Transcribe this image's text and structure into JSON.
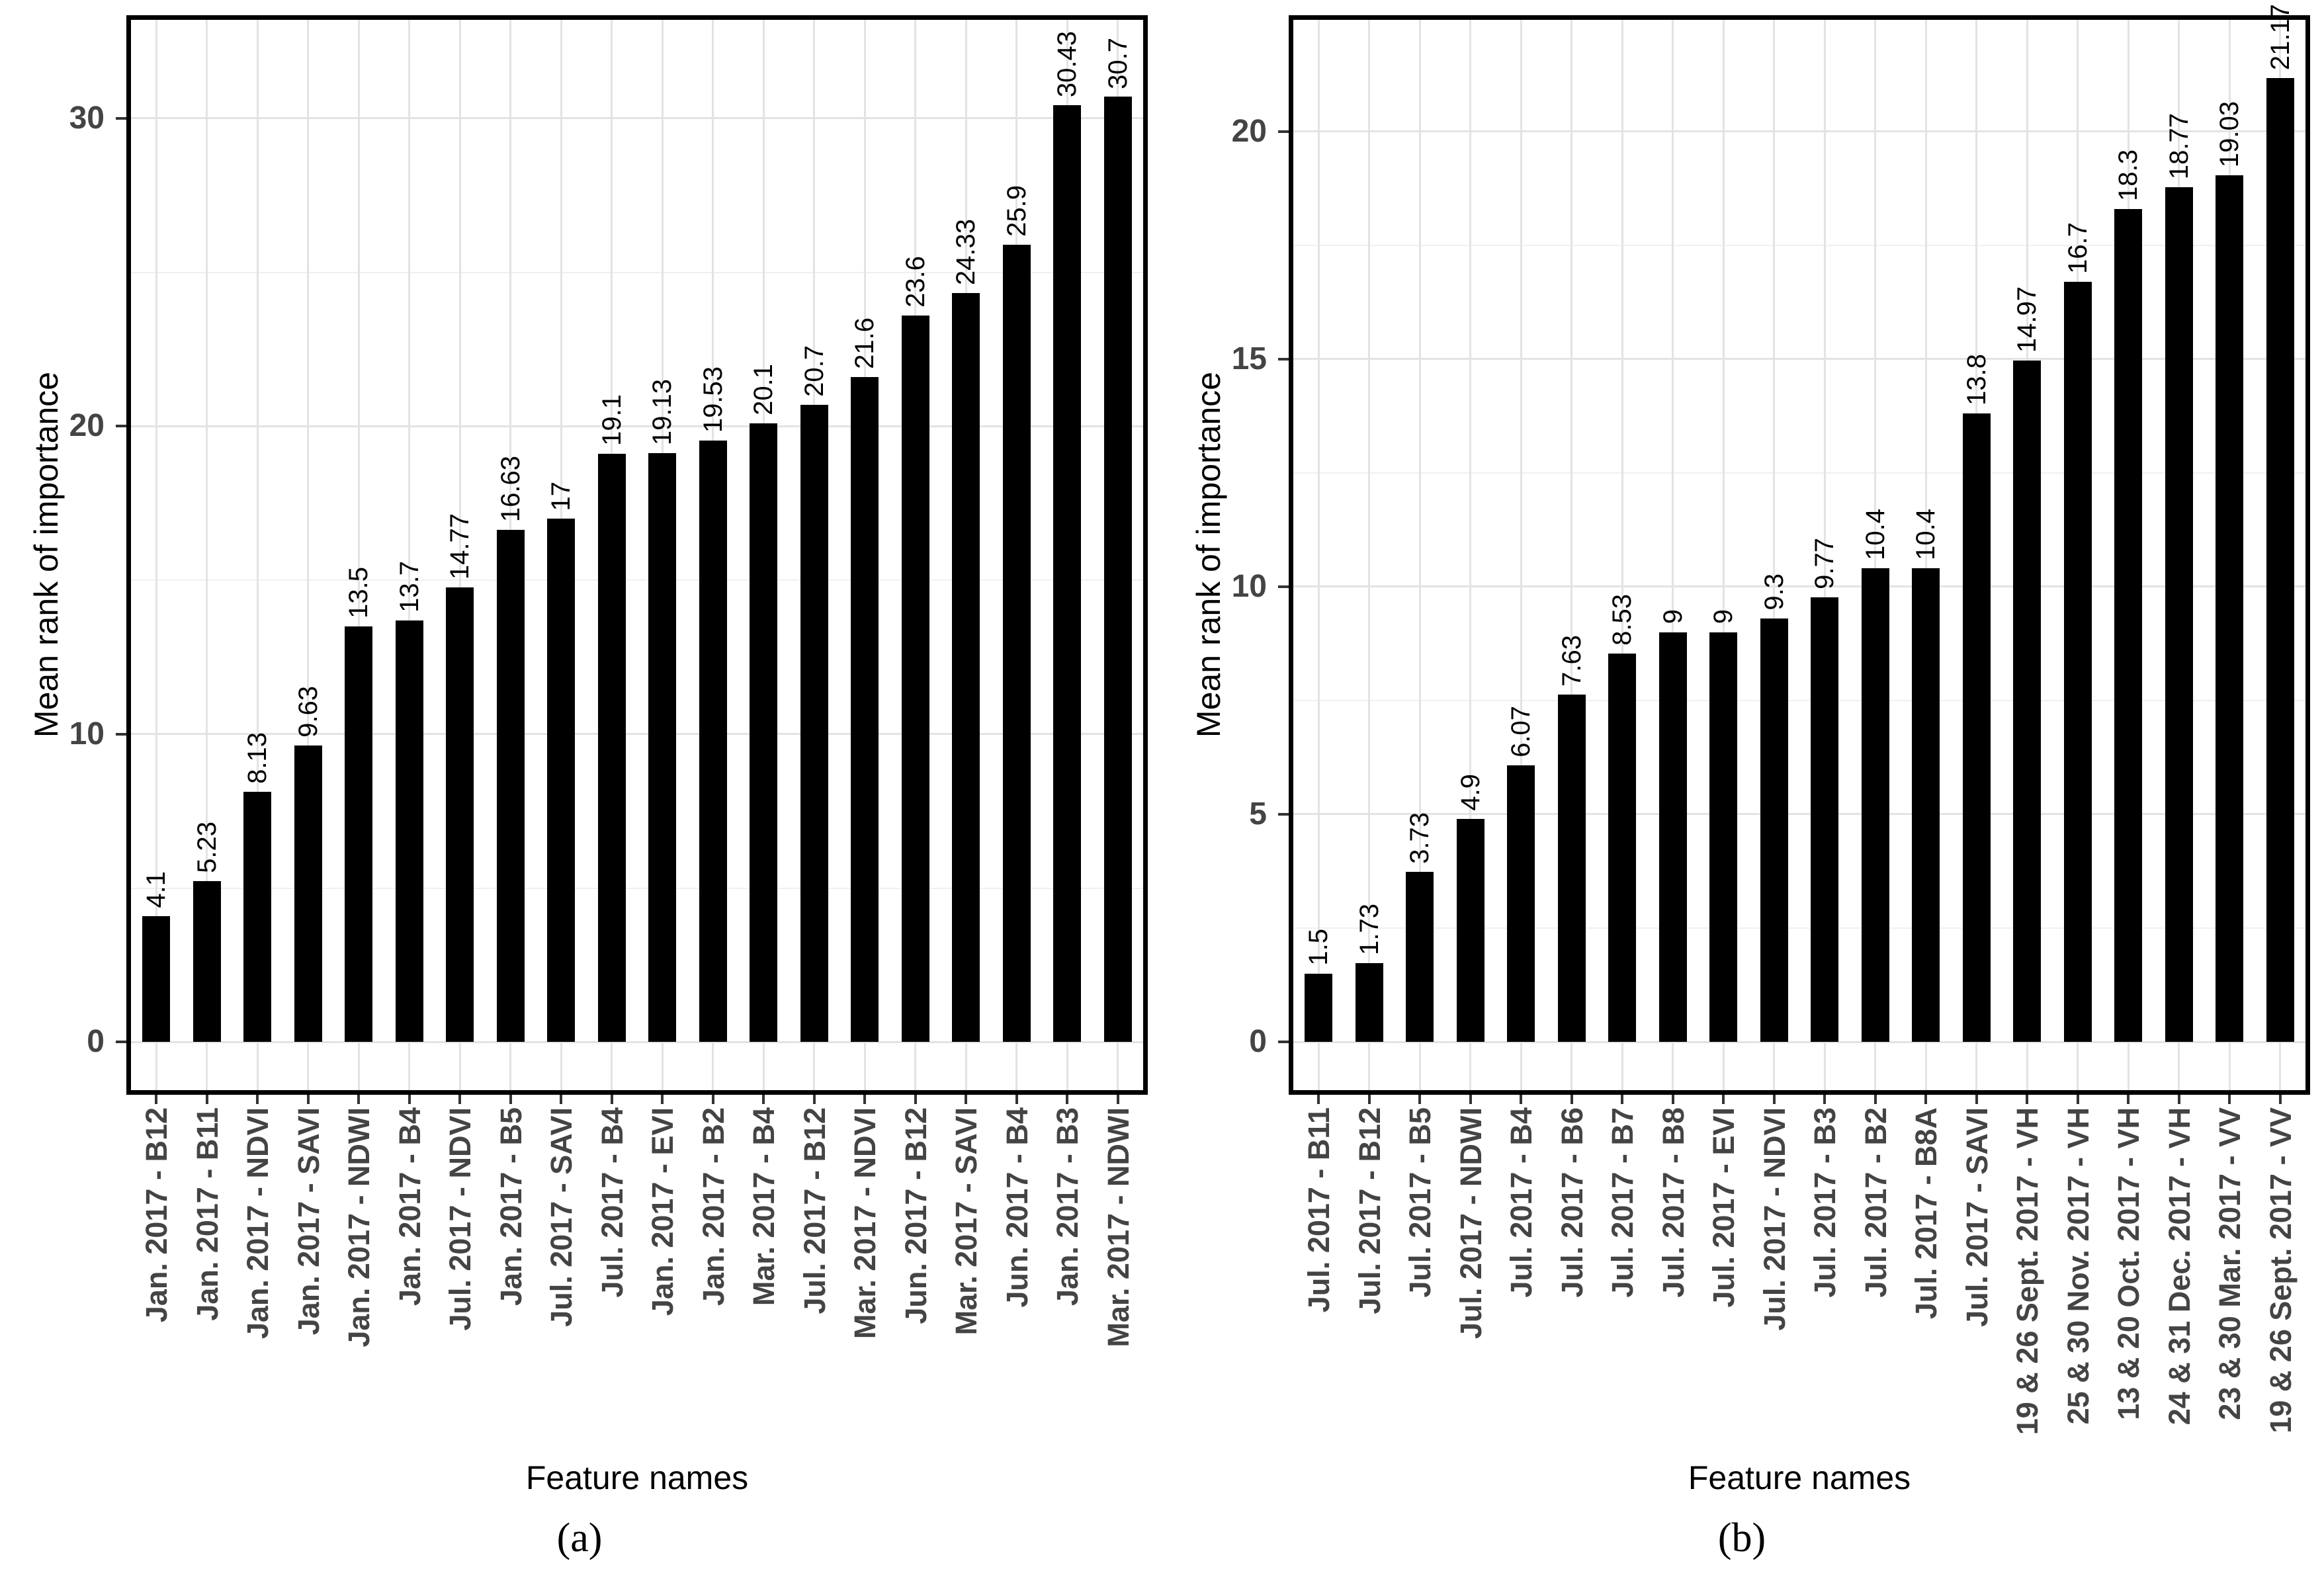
{
  "figure": {
    "captions": [
      "(a)",
      "(b)"
    ],
    "bar_color": "#000000",
    "axis_text_color": "#444444",
    "grid_major_color": "#e3e3e3",
    "grid_minor_color": "#f0f0f0"
  },
  "chart_data": [
    {
      "type": "bar",
      "panel": "a",
      "title": "",
      "xlabel": "Feature names",
      "ylabel": "Mean rank of importance",
      "categories": [
        "Jan. 2017 - B12",
        "Jan. 2017 - B11",
        "Jan. 2017 - NDVI",
        "Jan. 2017 - SAVI",
        "Jan. 2017 - NDWI",
        "Jan. 2017 - B4",
        "Jul. 2017 - NDVI",
        "Jan. 2017 - B5",
        "Jul. 2017 - SAVI",
        "Jul. 2017 - B4",
        "Jan. 2017 - EVI",
        "Jan. 2017 - B2",
        "Mar. 2017 - B4",
        "Jul. 2017 - B12",
        "Mar. 2017 - NDVI",
        "Jun. 2017 - B12",
        "Mar. 2017 - SAVI",
        "Jun. 2017 - B4",
        "Jan. 2017 - B3",
        "Mar. 2017 - NDWI"
      ],
      "values": [
        4.1,
        5.23,
        8.13,
        9.63,
        13.5,
        13.7,
        14.77,
        16.63,
        17,
        19.1,
        19.13,
        19.53,
        20.1,
        20.7,
        21.6,
        23.6,
        24.33,
        25.9,
        30.43,
        30.7
      ],
      "value_labels": [
        "4.1",
        "5.23",
        "8.13",
        "9.63",
        "13.5",
        "13.7",
        "14.77",
        "16.63",
        "17",
        "19.1",
        "19.13",
        "19.53",
        "20.1",
        "20.7",
        "21.6",
        "23.6",
        "24.33",
        "25.9",
        "30.43",
        "30.7"
      ],
      "yticks": [
        0,
        10,
        20,
        30
      ],
      "ytick_labels": [
        "0",
        "10",
        "20",
        "30"
      ],
      "minor_yticks": [
        5,
        15,
        25
      ],
      "ylim": [
        0,
        33.2
      ],
      "grid": "on",
      "legend": "none"
    },
    {
      "type": "bar",
      "panel": "b",
      "title": "",
      "xlabel": "Feature names",
      "ylabel": "Mean rank of importance",
      "categories": [
        "Jul. 2017 - B11",
        "Jul. 2017 - B12",
        "Jul. 2017 - B5",
        "Jul. 2017 - NDWI",
        "Jul. 2017 - B4",
        "Jul. 2017 - B6",
        "Jul. 2017 - B7",
        "Jul. 2017 - B8",
        "Jul. 2017 - EVI",
        "Jul. 2017 - NDVI",
        "Jul. 2017 - B3",
        "Jul. 2017 - B2",
        "Jul. 2017 - B8A",
        "Jul. 2017 - SAVI",
        "19 & 26 Sept. 2017 - VH",
        "25 & 30 Nov. 2017 - VH",
        "13 & 20 Oct. 2017 - VH",
        "24 & 31 Dec. 2017 - VH",
        "23 & 30 Mar. 2017 - VV",
        "19 & 26 Sept. 2017 - VV"
      ],
      "values": [
        1.5,
        1.73,
        3.73,
        4.9,
        6.07,
        7.63,
        8.53,
        9,
        9,
        9.3,
        9.77,
        10.4,
        10.4,
        13.8,
        14.97,
        16.7,
        18.3,
        18.77,
        19.03,
        21.17
      ],
      "value_labels": [
        "1.5",
        "1.73",
        "3.73",
        "4.9",
        "6.07",
        "7.63",
        "8.53",
        "9",
        "9",
        "9.3",
        "9.77",
        "10.4",
        "10.4",
        "13.8",
        "14.97",
        "16.7",
        "18.3",
        "18.77",
        "19.03",
        "21.17"
      ],
      "yticks": [
        0,
        5,
        10,
        15,
        20
      ],
      "ytick_labels": [
        "0",
        "5",
        "10",
        "15",
        "20"
      ],
      "minor_yticks": [
        2.5,
        7.5,
        12.5,
        17.5
      ],
      "ylim": [
        0,
        22.45
      ],
      "grid": "on",
      "legend": "none"
    }
  ]
}
